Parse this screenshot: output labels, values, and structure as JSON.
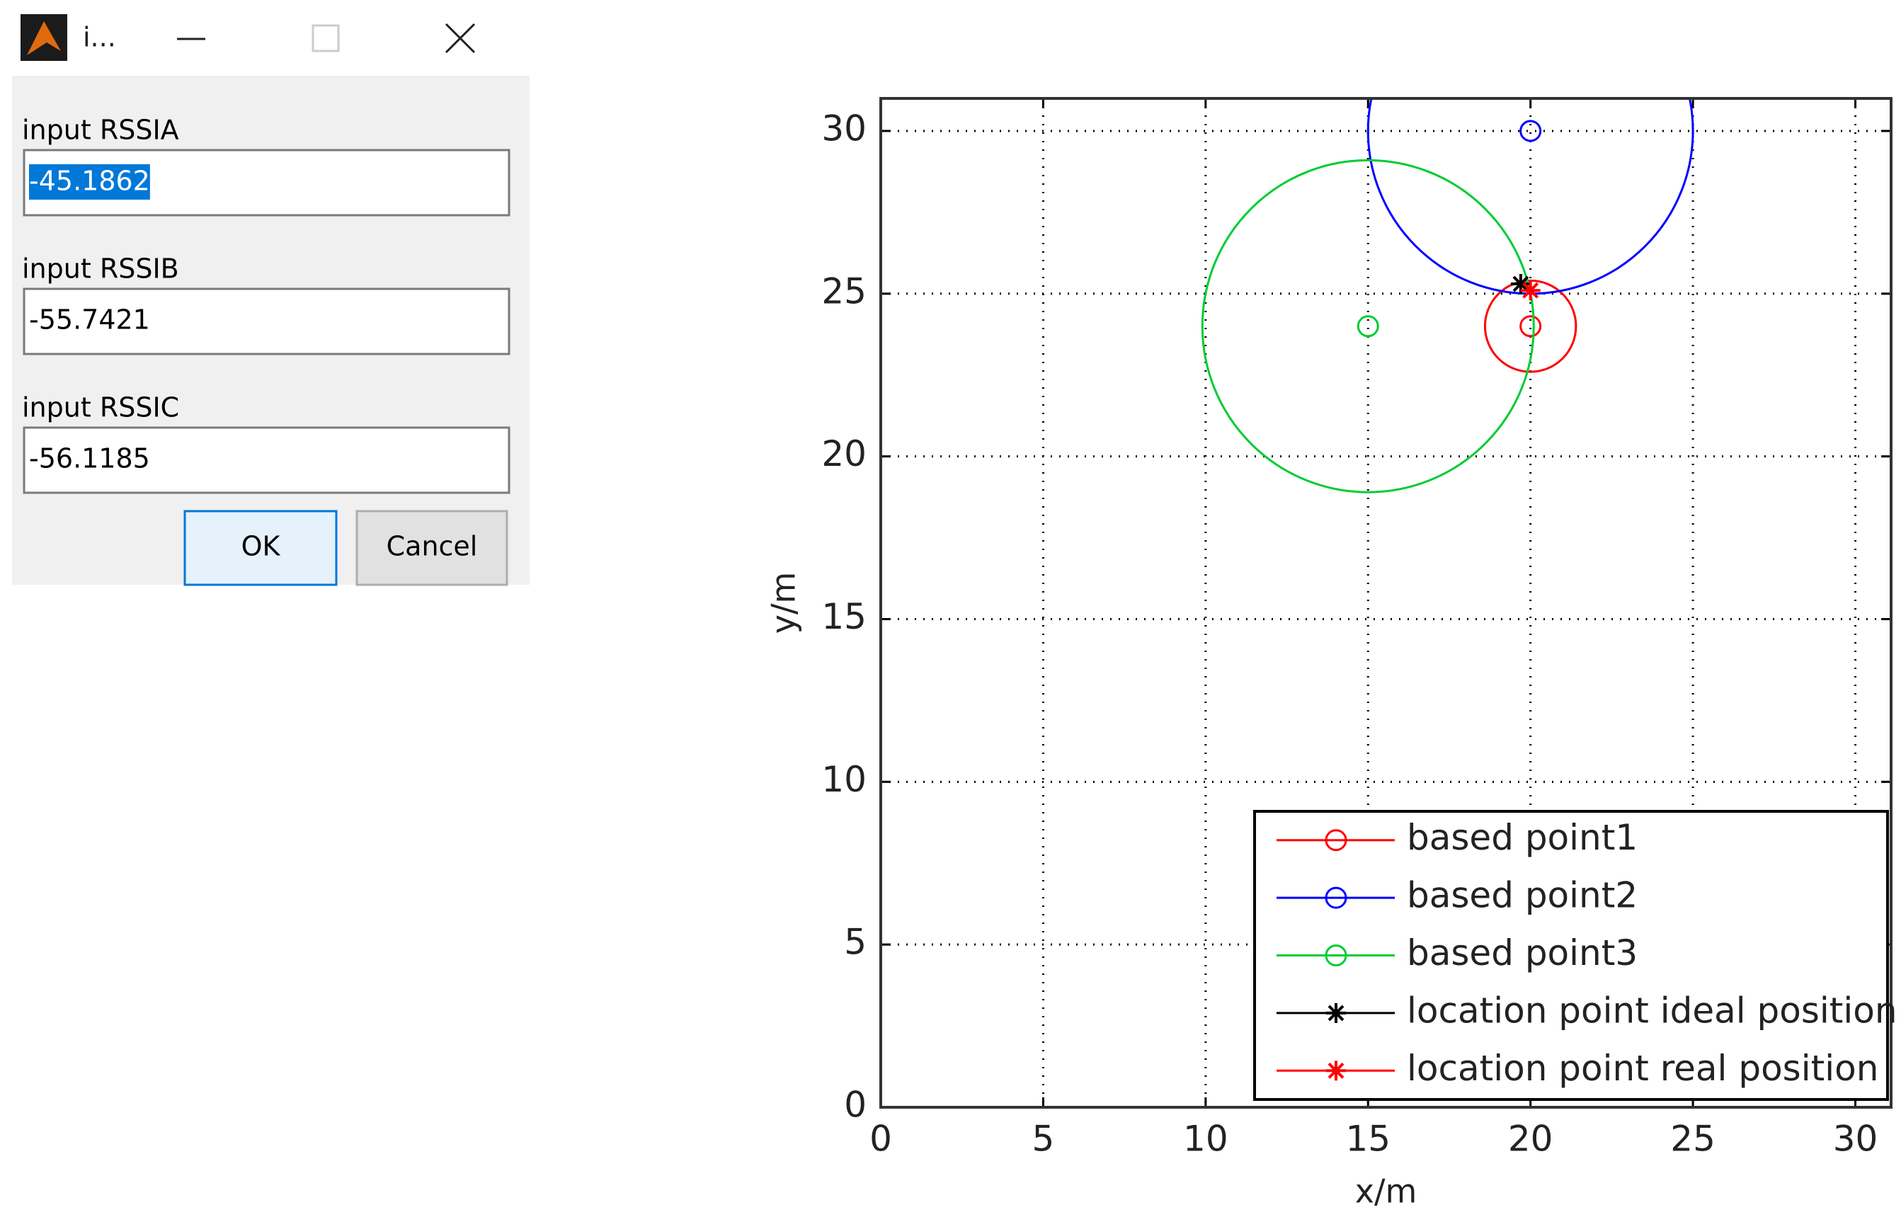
{
  "dialog": {
    "title": "i...",
    "fields": [
      {
        "label": "input RSSIA",
        "value": "-45.1862"
      },
      {
        "label": "input RSSIB",
        "value": "-55.7421"
      },
      {
        "label": "input RSSIC",
        "value": "-56.1185"
      }
    ],
    "buttons": [
      "OK",
      "Cancel"
    ]
  },
  "chart_data": {
    "type": "scatter",
    "x_label": "x/m",
    "y_label": "y/m",
    "xlim": [
      0,
      31.1
    ],
    "ylim": [
      0,
      31
    ],
    "xticks": [
      0,
      5,
      10,
      15,
      20,
      25,
      30
    ],
    "yticks": [
      0,
      5,
      10,
      15,
      20,
      25,
      30
    ],
    "grid": true,
    "legend": "lower right",
    "series": [
      {
        "name": "based point1",
        "color": "#ff0000",
        "marker": "o",
        "x": [
          20
        ],
        "values": [
          24
        ],
        "radius": 1.4
      },
      {
        "name": "based point2",
        "color": "#0000ff",
        "marker": "o",
        "x": [
          20
        ],
        "values": [
          30
        ],
        "radius": 5
      },
      {
        "name": "based point3",
        "color": "#00cc33",
        "marker": "o",
        "x": [
          15
        ],
        "values": [
          24
        ],
        "radius": 5.1
      },
      {
        "name": "location point ideal position",
        "color": "#000000",
        "marker": "*",
        "x": [
          19.7
        ],
        "values": [
          25.3
        ]
      },
      {
        "name": "location point real position",
        "color": "#ff0000",
        "marker": "*",
        "x": [
          20
        ],
        "values": [
          25.1
        ]
      }
    ]
  }
}
